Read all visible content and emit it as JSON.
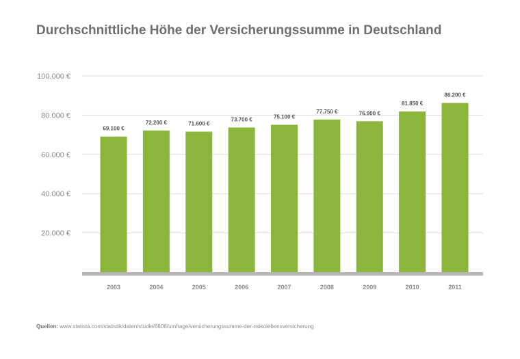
{
  "colors": {
    "bar": "#8bb63b",
    "grid": "#dddddd",
    "axis": "#b5b5b5",
    "text": "#8a8a8a",
    "label": "#555555"
  },
  "source": {
    "label": "Quellen:",
    "text": "www.statista.com/statistik/daten/studie/6606/umfrage/versicherungssumme-der-risikolebensversicherung"
  },
  "chart_data": {
    "type": "bar",
    "title": "Durchschnittliche Höhe der Versicherungssumme in Deutschland",
    "xlabel": "",
    "ylabel": "",
    "categories": [
      "2003",
      "2004",
      "2005",
      "2006",
      "2007",
      "2008",
      "2009",
      "2010",
      "2011"
    ],
    "values": [
      69100,
      72200,
      71600,
      73700,
      75100,
      77750,
      76900,
      81850,
      86200
    ],
    "data_labels": [
      "69.100 €",
      "72.200 €",
      "71.600 €",
      "73.700 €",
      "75.100 €",
      "77.750 €",
      "76.900 €",
      "81.850 €",
      "86.200 €"
    ],
    "ylim": [
      0,
      100000
    ],
    "yticks": [
      20000,
      40000,
      60000,
      80000,
      100000
    ],
    "ytick_labels": [
      "20.000 €",
      "40.000 €",
      "60.000 €",
      "80.000 €",
      "100.000 €"
    ],
    "grid": true,
    "legend": "none"
  }
}
